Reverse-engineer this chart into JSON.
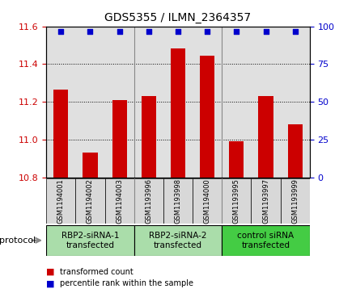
{
  "title": "GDS5355 / ILMN_2364357",
  "samples": [
    "GSM1194001",
    "GSM1194002",
    "GSM1194003",
    "GSM1193996",
    "GSM1193998",
    "GSM1194000",
    "GSM1193995",
    "GSM1193997",
    "GSM1193999"
  ],
  "bar_values": [
    11.265,
    10.93,
    11.21,
    11.23,
    11.485,
    11.445,
    10.99,
    11.23,
    11.08
  ],
  "bar_color": "#cc0000",
  "percentile_color": "#0000cc",
  "ylim_left": [
    10.8,
    11.6
  ],
  "yticks_left": [
    10.8,
    11.0,
    11.2,
    11.4,
    11.6
  ],
  "ylim_right": [
    0,
    100
  ],
  "yticks_right": [
    0,
    25,
    50,
    75,
    100
  ],
  "groups": [
    {
      "label": "RBP2-siRNA-1\ntransfected",
      "start": 0,
      "end": 3,
      "color": "#aaddaa"
    },
    {
      "label": "RBP2-siRNA-2\ntransfected",
      "start": 3,
      "end": 6,
      "color": "#aaddaa"
    },
    {
      "label": "control siRNA\ntransfected",
      "start": 6,
      "end": 9,
      "color": "#44cc44"
    }
  ],
  "protocol_label": "protocol",
  "legend_bar_label": "transformed count",
  "legend_pct_label": "percentile rank within the sample",
  "background_color": "#ffffff",
  "plot_bg_color": "#e0e0e0",
  "cell_bg_color": "#d8d8d8",
  "bar_width": 0.5
}
